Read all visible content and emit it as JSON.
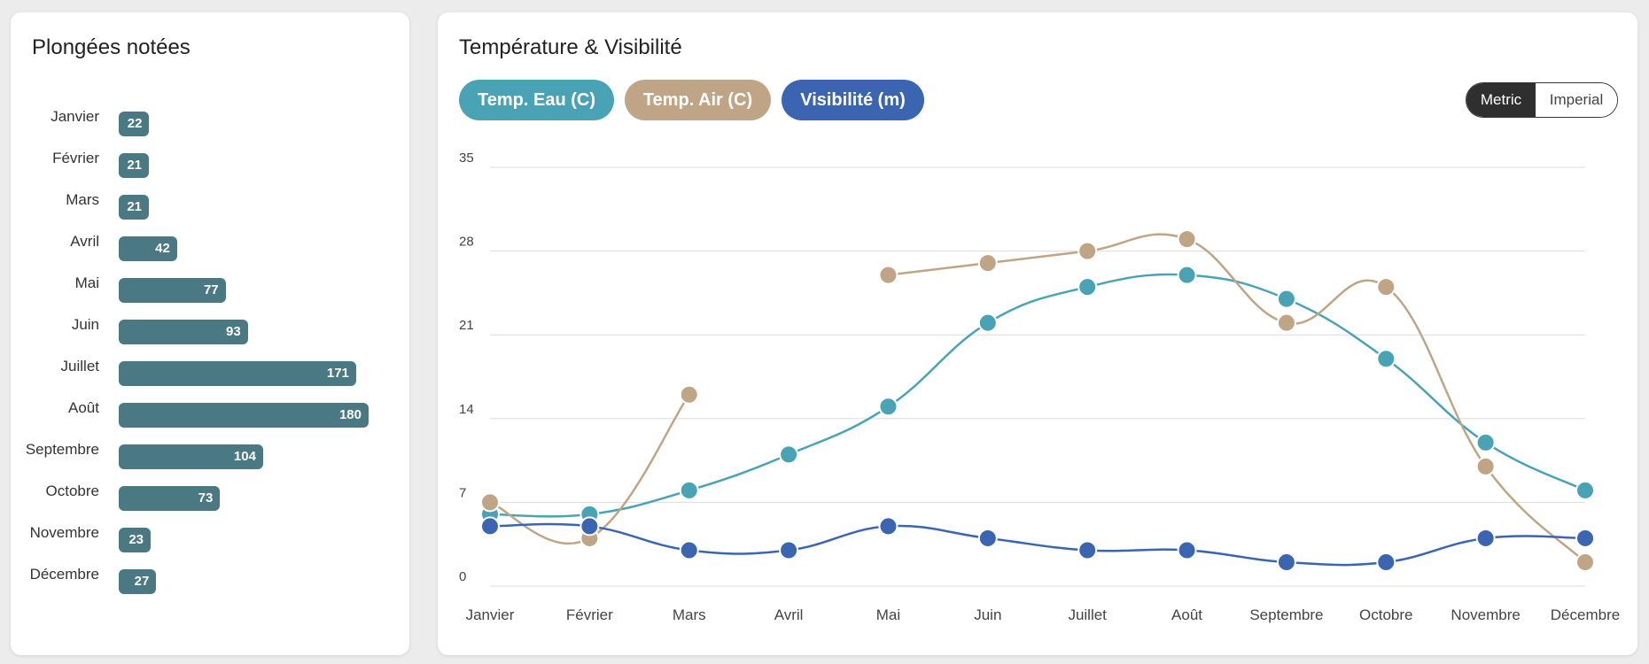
{
  "left_panel": {
    "title": "Plongées notées",
    "bar_color": "#4a7883",
    "months": [
      "Janvier",
      "Février",
      "Mars",
      "Avril",
      "Mai",
      "Juin",
      "Juillet",
      "Août",
      "Septembre",
      "Octobre",
      "Novembre",
      "Décembre"
    ],
    "values": [
      22,
      21,
      21,
      42,
      77,
      93,
      171,
      180,
      104,
      73,
      23,
      27
    ]
  },
  "right_panel": {
    "title": "Température & Visibilité",
    "buttons": [
      {
        "label": "Temp. Eau (C)",
        "color": "#4aa3b5"
      },
      {
        "label": "Temp. Air (C)",
        "color": "#bfa585"
      },
      {
        "label": "Visibilité (m)",
        "color": "#3b65b0"
      }
    ],
    "unit_toggle": {
      "metric": "Metric",
      "imperial": "Imperial",
      "selected": "Metric"
    }
  },
  "chart_data": {
    "type": "line",
    "title": "Température & Visibilité",
    "categories": [
      "Janvier",
      "Février",
      "Mars",
      "Avril",
      "Mai",
      "Juin",
      "Juillet",
      "Août",
      "Septembre",
      "Octobre",
      "Novembre",
      "Décembre"
    ],
    "y_ticks": [
      0,
      7,
      14,
      21,
      28,
      35
    ],
    "ylim": [
      0,
      35
    ],
    "grid": true,
    "series": [
      {
        "name": "Temp. Eau (C)",
        "color": "#4aa3b5",
        "values": [
          6,
          6,
          8,
          11,
          15,
          22,
          25,
          26,
          24,
          19,
          12,
          8
        ]
      },
      {
        "name": "Temp. Air (C)",
        "color": "#bfa585",
        "values": [
          7,
          4,
          16,
          null,
          26,
          27,
          28,
          29,
          22,
          25,
          10,
          2
        ]
      },
      {
        "name": "Visibilité (m)",
        "color": "#3b65b0",
        "values": [
          5,
          5,
          3,
          3,
          5,
          4,
          3,
          3,
          2,
          2,
          4,
          4
        ]
      }
    ]
  }
}
